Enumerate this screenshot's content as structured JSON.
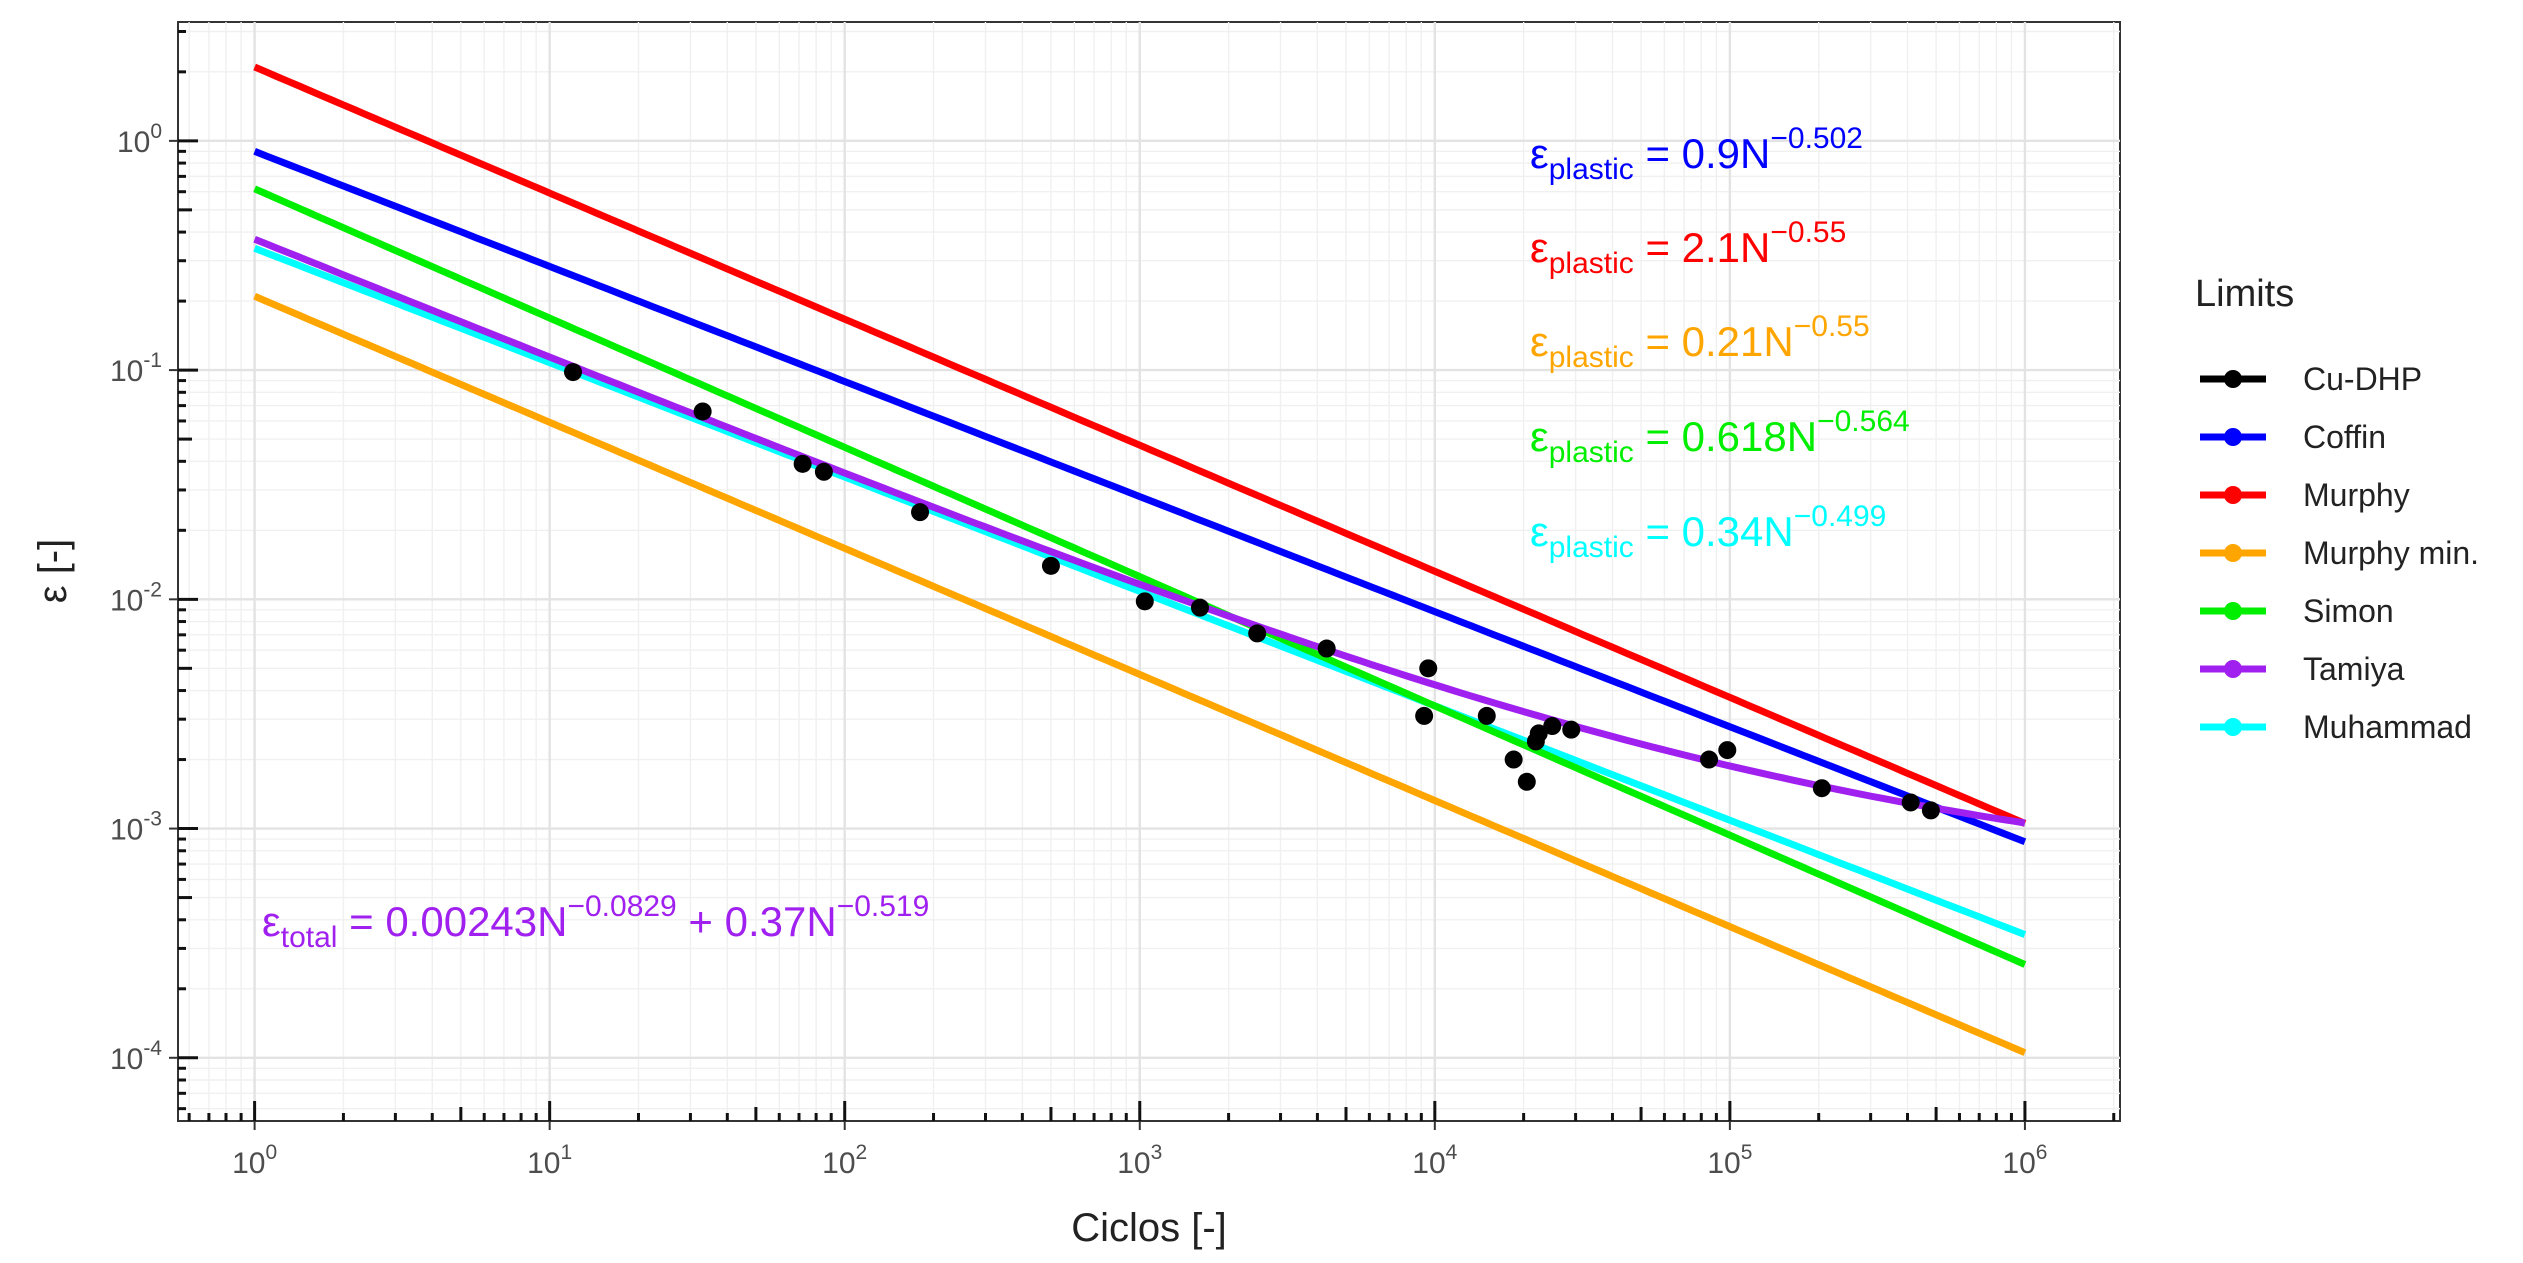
{
  "chart_data": {
    "type": "scatter",
    "xlabel": "Ciclos [-]",
    "ylabel": "ε [-]",
    "x_scale": "log",
    "y_scale": "log",
    "xlim": [
      0.55,
      2100000.0
    ],
    "ylim": [
      5.3e-05,
      3.3
    ],
    "x_ticks": [
      {
        "value": 1,
        "base": "10",
        "exp": "0"
      },
      {
        "value": 10,
        "base": "10",
        "exp": "1"
      },
      {
        "value": 100,
        "base": "10",
        "exp": "2"
      },
      {
        "value": 1000,
        "base": "10",
        "exp": "3"
      },
      {
        "value": 10000,
        "base": "10",
        "exp": "4"
      },
      {
        "value": 100000,
        "base": "10",
        "exp": "5"
      },
      {
        "value": 1000000,
        "base": "10",
        "exp": "6"
      }
    ],
    "y_ticks": [
      {
        "value": 0.0001,
        "base": "10",
        "exp": "-4"
      },
      {
        "value": 0.001,
        "base": "10",
        "exp": "-3"
      },
      {
        "value": 0.01,
        "base": "10",
        "exp": "-2"
      },
      {
        "value": 0.1,
        "base": "10",
        "exp": "-1"
      },
      {
        "value": 1,
        "base": "10",
        "exp": "0"
      }
    ],
    "legend": {
      "title": "Limits",
      "position": "right",
      "entries": [
        {
          "label": "Cu-DHP",
          "color": "#000000"
        },
        {
          "label": "Coffin",
          "color": "#0000ff"
        },
        {
          "label": "Murphy",
          "color": "#ff0000"
        },
        {
          "label": "Murphy min.",
          "color": "#ffa500"
        },
        {
          "label": "Simon",
          "color": "#00ee00"
        },
        {
          "label": "Tamiya",
          "color": "#a020f0"
        },
        {
          "label": "Muhammad",
          "color": "#00ffff"
        }
      ]
    },
    "series": [
      {
        "name": "Cu-DHP",
        "kind": "points",
        "color": "#000000",
        "points": [
          [
            12,
            0.098
          ],
          [
            33,
            0.066
          ],
          [
            72,
            0.039
          ],
          [
            85,
            0.036
          ],
          [
            180,
            0.024
          ],
          [
            500,
            0.014
          ],
          [
            1040,
            0.0098
          ],
          [
            1600,
            0.0092
          ],
          [
            2500,
            0.0071
          ],
          [
            4300,
            0.0061
          ],
          [
            9200,
            0.0031
          ],
          [
            9500,
            0.005
          ],
          [
            15000,
            0.0031
          ],
          [
            18500,
            0.002
          ],
          [
            20500,
            0.0016
          ],
          [
            22000,
            0.0024
          ],
          [
            22500,
            0.0026
          ],
          [
            25000,
            0.0028
          ],
          [
            29000,
            0.0027
          ],
          [
            85000,
            0.002
          ],
          [
            98000,
            0.0022
          ],
          [
            205000,
            0.0015
          ],
          [
            410000,
            0.0013
          ],
          [
            480000,
            0.0012
          ]
        ]
      },
      {
        "name": "Coffin",
        "kind": "powerlaw",
        "color": "#0000ff",
        "terms": [
          [
            0.9,
            -0.502
          ]
        ]
      },
      {
        "name": "Murphy",
        "kind": "powerlaw",
        "color": "#ff0000",
        "terms": [
          [
            2.1,
            -0.55
          ]
        ]
      },
      {
        "name": "Murphy min.",
        "kind": "powerlaw",
        "color": "#ffa500",
        "terms": [
          [
            0.21,
            -0.55
          ]
        ]
      },
      {
        "name": "Simon",
        "kind": "powerlaw",
        "color": "#00ee00",
        "terms": [
          [
            0.618,
            -0.564
          ]
        ]
      },
      {
        "name": "Tamiya",
        "kind": "powerlaw",
        "color": "#a020f0",
        "terms": [
          [
            0.00243,
            -0.0829
          ],
          [
            0.37,
            -0.519
          ]
        ]
      },
      {
        "name": "Muhammad",
        "kind": "powerlaw",
        "color": "#00ffff",
        "terms": [
          [
            0.34,
            -0.499
          ]
        ]
      }
    ],
    "annotations": [
      {
        "color": "#0000ff",
        "prefix": "ε",
        "sub": "plastic",
        "mid": " = 0.9N",
        "sup": "−0.502",
        "mid2": "",
        "sup2": ""
      },
      {
        "color": "#ff0000",
        "prefix": "ε",
        "sub": "plastic",
        "mid": " = 2.1N",
        "sup": "−0.55",
        "mid2": "",
        "sup2": ""
      },
      {
        "color": "#ffa500",
        "prefix": "ε",
        "sub": "plastic",
        "mid": " = 0.21N",
        "sup": "−0.55",
        "mid2": "",
        "sup2": ""
      },
      {
        "color": "#00ee00",
        "prefix": "ε",
        "sub": "plastic",
        "mid": " = 0.618N",
        "sup": "−0.564",
        "mid2": "",
        "sup2": ""
      },
      {
        "color": "#00ffff",
        "prefix": "ε",
        "sub": "plastic",
        "mid": " = 0.34N",
        "sup": "−0.499",
        "mid2": "",
        "sup2": ""
      },
      {
        "color": "#a020f0",
        "prefix": "ε",
        "sub": "total",
        "mid": " = 0.00243N",
        "sup": "−0.0829",
        "mid2": " + 0.37N",
        "sup2": "−0.519"
      }
    ]
  }
}
